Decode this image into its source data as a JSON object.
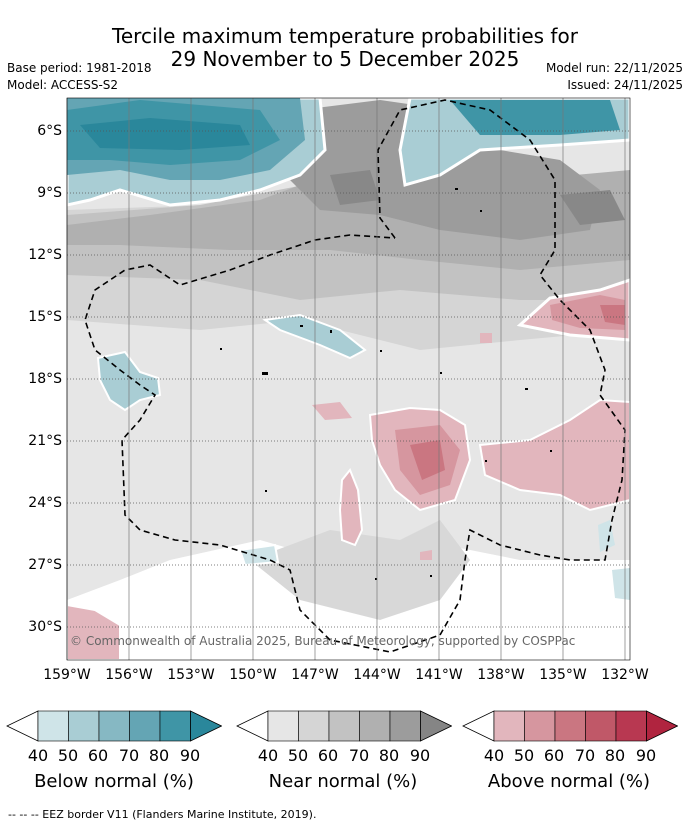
{
  "title": {
    "line1": "Tercile maximum temperature probabilities for",
    "line2": "29 November to 5 December 2025"
  },
  "meta": {
    "base_period": "Base period: 1981-2018",
    "model": "Model: ACCESS-S2",
    "model_run": "Model run: 22/11/2025",
    "issued": "Issued: 24/11/2025"
  },
  "map": {
    "lat_labels": [
      "6°S",
      "9°S",
      "12°S",
      "15°S",
      "18°S",
      "21°S",
      "24°S",
      "27°S",
      "30°S"
    ],
    "lon_labels": [
      "159°W",
      "156°W",
      "153°W",
      "150°W",
      "147°W",
      "144°W",
      "141°W",
      "138°W",
      "135°W",
      "132°W"
    ],
    "copyright": "© Commonwealth of Australia 2025, Bureau of Meteorology, supported by COSPPac"
  },
  "colorbars": {
    "below": {
      "title": "Below normal (%)",
      "ticks": [
        "40",
        "50",
        "60",
        "70",
        "80",
        "90"
      ],
      "colors": [
        "#ffffff",
        "#cfe4e8",
        "#a9cdd4",
        "#86b8c3",
        "#64a5b4",
        "#3f95a6",
        "#2a879b"
      ]
    },
    "near": {
      "title": "Near normal (%)",
      "ticks": [
        "40",
        "50",
        "60",
        "70",
        "80",
        "90"
      ],
      "colors": [
        "#ffffff",
        "#e6e6e6",
        "#d5d5d5",
        "#c2c2c2",
        "#b0b0b0",
        "#9c9c9c",
        "#858585"
      ]
    },
    "above": {
      "title": "Above normal (%)",
      "ticks": [
        "40",
        "50",
        "60",
        "70",
        "80",
        "90"
      ],
      "colors": [
        "#ffffff",
        "#e2b6bd",
        "#d6969f",
        "#ca7681",
        "#c05868",
        "#b83851",
        "#b0243f"
      ]
    }
  },
  "footer": "--  --  -- EEZ border V11 (Flanders Marine Institute, 2019)."
}
